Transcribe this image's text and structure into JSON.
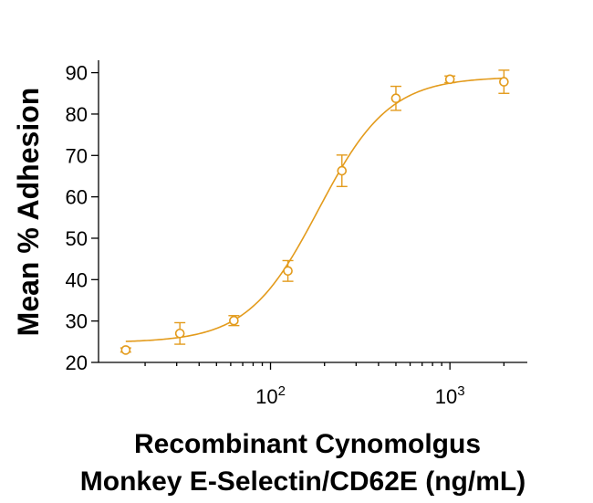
{
  "chart_data": {
    "type": "scatter",
    "x_scale": "log",
    "xlabel_lines": [
      "Recombinant Cynomolgus",
      "Monkey E-Selectin/CD62E (ng/mL)"
    ],
    "ylabel": "Mean % Adhesion",
    "xlim": [
      11,
      2700
    ],
    "ylim": [
      20,
      93
    ],
    "y_ticks": [
      {
        "value": 20,
        "label": "20"
      },
      {
        "value": 30,
        "label": "30"
      },
      {
        "value": 40,
        "label": "40"
      },
      {
        "value": 50,
        "label": "50"
      },
      {
        "value": 60,
        "label": "60"
      },
      {
        "value": 70,
        "label": "70"
      },
      {
        "value": 80,
        "label": "80"
      },
      {
        "value": 90,
        "label": "90"
      }
    ],
    "x_ticks": [
      {
        "value": 100,
        "base": "10",
        "exp": "2"
      },
      {
        "value": 1000,
        "base": "10",
        "exp": "3"
      }
    ],
    "color": "#E39B1C",
    "grid": false,
    "series": [
      {
        "points": [
          {
            "x": 15.6,
            "y": 23.0,
            "err": 0.5
          },
          {
            "x": 31.25,
            "y": 27.0,
            "err": 2.6
          },
          {
            "x": 62.5,
            "y": 30.1,
            "err": 1.2
          },
          {
            "x": 125,
            "y": 42.1,
            "err": 2.5
          },
          {
            "x": 250,
            "y": 66.3,
            "err": 3.8
          },
          {
            "x": 500,
            "y": 83.8,
            "err": 2.9
          },
          {
            "x": 1000,
            "y": 88.4,
            "err": 0.8
          },
          {
            "x": 2000,
            "y": 87.8,
            "err": 2.8
          }
        ]
      }
    ],
    "fit": {
      "bottom": 24.8,
      "top": 89.0,
      "ec50": 185,
      "hill": 2.2,
      "x_from": 15.6,
      "x_to": 2000
    }
  }
}
